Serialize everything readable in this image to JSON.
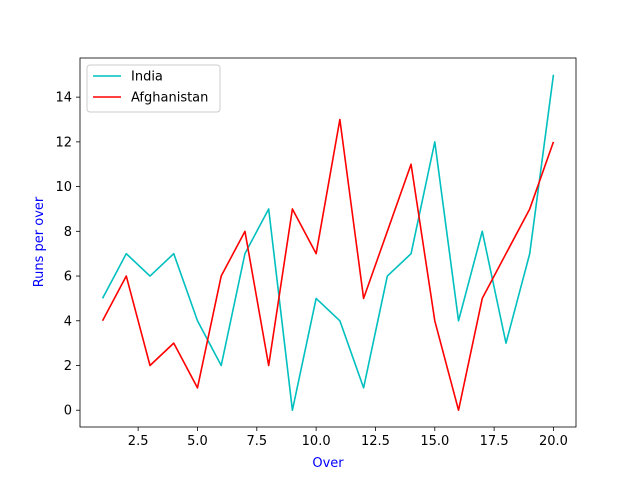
{
  "chart_data": {
    "type": "line",
    "title": "",
    "xlabel": "Over",
    "ylabel": "Runs per over",
    "label_color": "#0000ff",
    "x": [
      1,
      2,
      3,
      4,
      5,
      6,
      7,
      8,
      9,
      10,
      11,
      12,
      13,
      14,
      15,
      16,
      17,
      18,
      19,
      20
    ],
    "series": [
      {
        "name": "India",
        "color": "#00bfbf",
        "values": [
          5,
          7,
          6,
          7,
          4,
          2,
          7,
          9,
          0,
          5,
          4,
          1,
          6,
          7,
          12,
          4,
          8,
          3,
          7,
          15
        ]
      },
      {
        "name": "Afghanistan",
        "color": "#ff0000",
        "values": [
          4,
          6,
          2,
          3,
          1,
          6,
          8,
          2,
          9,
          7,
          13,
          5,
          8,
          11,
          4,
          0,
          5,
          7,
          9,
          12
        ]
      }
    ],
    "xlim": [
      0.05,
      20.95
    ],
    "ylim": [
      -0.75,
      15.75
    ],
    "xticks": [
      2.5,
      5.0,
      7.5,
      10.0,
      12.5,
      15.0,
      17.5,
      20.0
    ],
    "xtick_labels": [
      "2.5",
      "5.0",
      "7.5",
      "10.0",
      "12.5",
      "15.0",
      "17.5",
      "20.0"
    ],
    "yticks": [
      0,
      2,
      4,
      6,
      8,
      10,
      12,
      14
    ],
    "ytick_labels": [
      "0",
      "2",
      "4",
      "6",
      "8",
      "10",
      "12",
      "14"
    ],
    "grid": false,
    "legend_position": "top-left"
  }
}
